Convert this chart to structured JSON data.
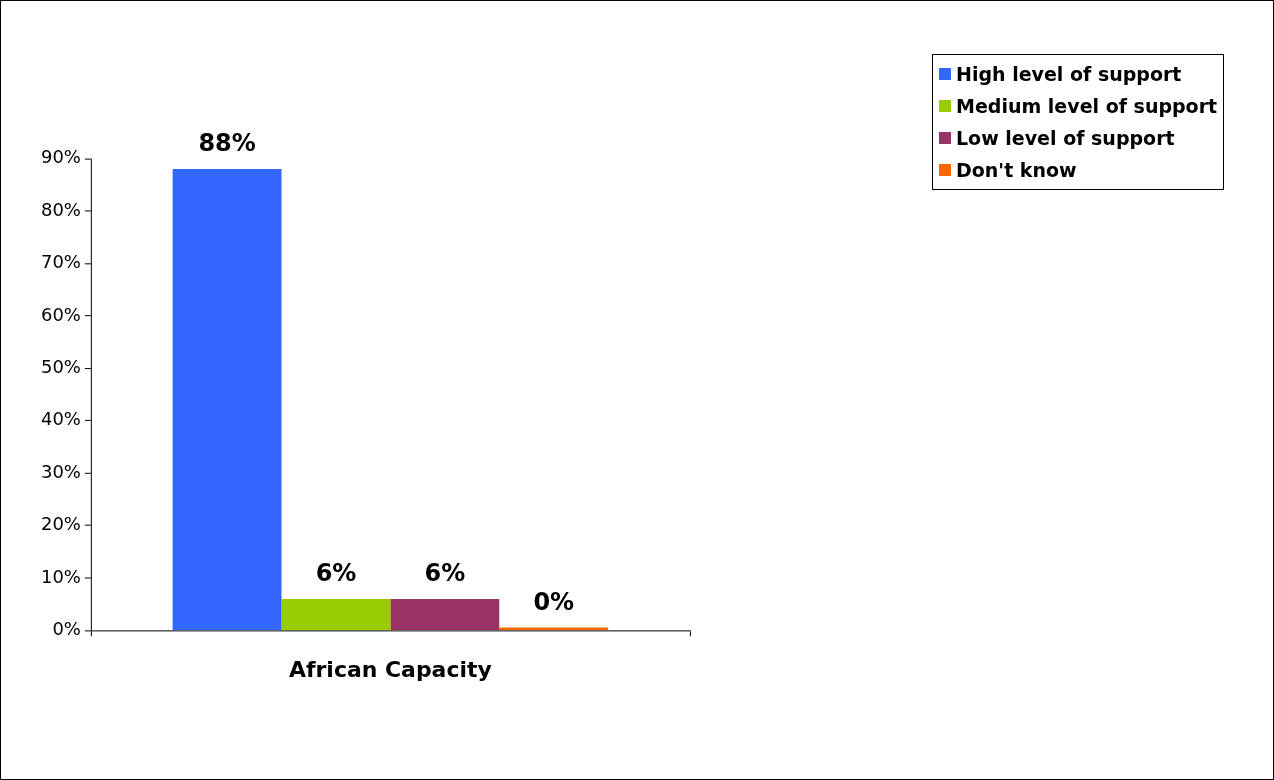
{
  "chart_data": {
    "type": "bar",
    "categories": [
      "African Capacity"
    ],
    "series": [
      {
        "name": "High level of support",
        "color": "#3366ff",
        "values": [
          88
        ],
        "value_labels": [
          "88%"
        ]
      },
      {
        "name": "Medium level of support",
        "color": "#99cc00",
        "values": [
          6
        ],
        "value_labels": [
          "6%"
        ]
      },
      {
        "name": "Low level of support",
        "color": "#993366",
        "values": [
          6
        ],
        "value_labels": [
          "6%"
        ]
      },
      {
        "name": "Don't know",
        "color": "#ff6600",
        "values": [
          0
        ],
        "value_labels": [
          "0%"
        ]
      }
    ],
    "ylim": [
      0,
      90
    ],
    "yticks": [
      {
        "value": 0,
        "label": "0%"
      },
      {
        "value": 10,
        "label": "10%"
      },
      {
        "value": 20,
        "label": "20%"
      },
      {
        "value": 30,
        "label": "30%"
      },
      {
        "value": 40,
        "label": "40%"
      },
      {
        "value": 50,
        "label": "50%"
      },
      {
        "value": 60,
        "label": "60%"
      },
      {
        "value": 70,
        "label": "70%"
      },
      {
        "value": 80,
        "label": "80%"
      },
      {
        "value": 90,
        "label": "90%"
      }
    ],
    "grid": false,
    "legend": "top right"
  }
}
